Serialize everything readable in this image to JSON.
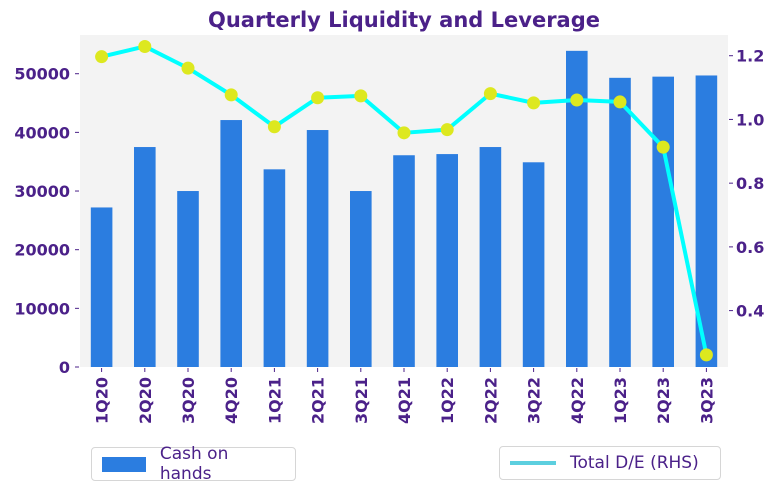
{
  "chart_data": {
    "type": "bar+line",
    "title": "Quarterly Liquidity and Leverage",
    "categories": [
      "1Q20",
      "2Q20",
      "3Q20",
      "4Q20",
      "1Q21",
      "2Q21",
      "3Q21",
      "4Q21",
      "1Q22",
      "2Q22",
      "3Q22",
      "4Q22",
      "1Q23",
      "2Q23",
      "3Q23"
    ],
    "series": [
      {
        "name": "Cash on hands",
        "type": "bar",
        "axis": "left",
        "color": "#2b7de0",
        "values": [
          27200,
          37500,
          30000,
          42100,
          33700,
          40400,
          30000,
          36100,
          36300,
          37500,
          34900,
          53900,
          49300,
          49500,
          49700
        ]
      },
      {
        "name": "Total D/E (RHS)",
        "type": "line",
        "axis": "right",
        "color": "#00ffff",
        "marker_color": "#dde81f",
        "values": [
          1.197,
          1.229,
          1.161,
          1.077,
          0.977,
          1.068,
          1.074,
          0.958,
          0.968,
          1.081,
          1.052,
          1.061,
          1.055,
          0.913,
          0.261
        ]
      }
    ],
    "left_axis": {
      "ylim": [
        0,
        56600
      ],
      "ticks": [
        0,
        10000,
        20000,
        30000,
        40000,
        50000
      ],
      "tick_labels": [
        "0",
        "10000",
        "20000",
        "30000",
        "40000",
        "50000"
      ]
    },
    "right_axis": {
      "ylim": [
        0.223,
        1.265
      ],
      "ticks": [
        0.4,
        0.6,
        0.8,
        1.0,
        1.2
      ],
      "tick_labels": [
        "0.4",
        "0.6",
        "0.8",
        "1.0",
        "1.2"
      ]
    },
    "xlabel": "",
    "ylabel": "",
    "grid": false,
    "background": "#f3f3f3",
    "legend": [
      {
        "label": "Cash on hands",
        "placement": "bottom-left"
      },
      {
        "label": "Total D/E (RHS)",
        "placement": "bottom-right"
      }
    ]
  }
}
